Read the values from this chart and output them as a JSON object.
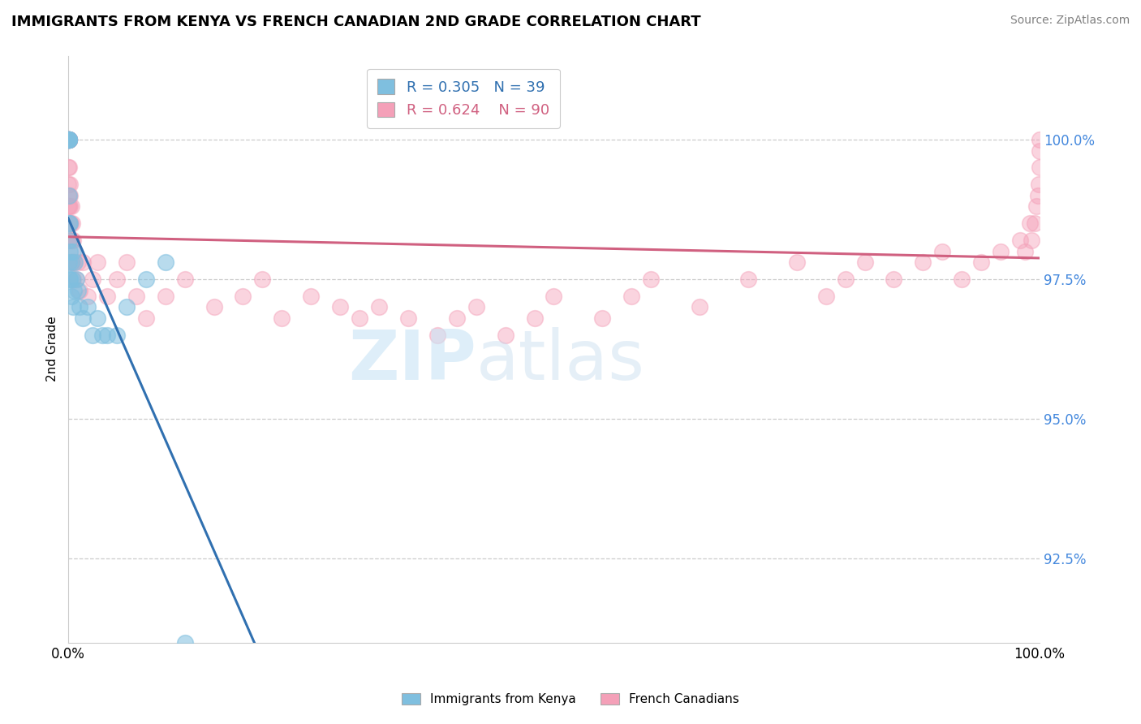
{
  "title": "IMMIGRANTS FROM KENYA VS FRENCH CANADIAN 2ND GRADE CORRELATION CHART",
  "source": "Source: ZipAtlas.com",
  "ylabel": "2nd Grade",
  "ytick_values": [
    92.5,
    95.0,
    97.5,
    100.0
  ],
  "legend_blue_r": "R = 0.305",
  "legend_blue_n": "N = 39",
  "legend_pink_r": "R = 0.624",
  "legend_pink_n": "N = 90",
  "blue_color": "#7fbfdf",
  "pink_color": "#f4a0b8",
  "blue_line_color": "#3070b0",
  "pink_line_color": "#d06080",
  "blue_scatter_x": [
    0.0,
    0.0,
    0.0,
    0.0,
    0.0,
    0.0,
    0.05,
    0.05,
    0.05,
    0.05,
    0.1,
    0.1,
    0.1,
    0.1,
    0.15,
    0.15,
    0.2,
    0.2,
    0.3,
    0.3,
    0.4,
    0.5,
    0.5,
    0.6,
    0.7,
    0.8,
    1.0,
    1.2,
    1.5,
    2.0,
    2.5,
    3.0,
    3.5,
    4.0,
    5.0,
    6.0,
    8.0,
    10.0,
    12.0
  ],
  "blue_scatter_y": [
    100.0,
    100.0,
    100.0,
    100.0,
    100.0,
    100.0,
    100.0,
    100.0,
    100.0,
    100.0,
    99.0,
    98.5,
    98.2,
    97.8,
    98.5,
    97.5,
    98.0,
    97.5,
    97.8,
    97.2,
    97.5,
    97.0,
    98.0,
    97.3,
    97.8,
    97.5,
    97.3,
    97.0,
    96.8,
    97.0,
    96.5,
    96.8,
    96.5,
    96.5,
    96.5,
    97.0,
    97.5,
    97.8,
    91.0
  ],
  "pink_scatter_x": [
    0.0,
    0.0,
    0.0,
    0.0,
    0.05,
    0.05,
    0.05,
    0.05,
    0.05,
    0.05,
    0.05,
    0.05,
    0.05,
    0.05,
    0.1,
    0.1,
    0.1,
    0.1,
    0.15,
    0.15,
    0.15,
    0.2,
    0.2,
    0.2,
    0.25,
    0.3,
    0.3,
    0.3,
    0.35,
    0.4,
    0.4,
    0.5,
    0.5,
    0.6,
    0.7,
    0.8,
    1.0,
    1.2,
    1.5,
    2.0,
    2.5,
    3.0,
    4.0,
    5.0,
    6.0,
    7.0,
    8.0,
    10.0,
    12.0,
    15.0,
    18.0,
    20.0,
    22.0,
    25.0,
    28.0,
    30.0,
    32.0,
    35.0,
    38.0,
    40.0,
    42.0,
    45.0,
    48.0,
    50.0,
    55.0,
    58.0,
    60.0,
    65.0,
    70.0,
    75.0,
    78.0,
    80.0,
    82.0,
    85.0,
    88.0,
    90.0,
    92.0,
    94.0,
    96.0,
    98.0,
    98.5,
    99.0,
    99.2,
    99.5,
    99.7,
    99.8,
    99.9,
    100.0,
    100.0,
    100.0
  ],
  "pink_scatter_y": [
    99.5,
    99.2,
    99.0,
    98.8,
    100.0,
    100.0,
    100.0,
    100.0,
    100.0,
    100.0,
    100.0,
    100.0,
    100.0,
    100.0,
    99.5,
    99.0,
    98.8,
    98.5,
    99.2,
    98.8,
    98.5,
    99.0,
    98.5,
    98.2,
    98.5,
    98.8,
    98.2,
    97.8,
    98.2,
    98.5,
    97.8,
    98.2,
    97.5,
    97.8,
    98.0,
    97.5,
    97.8,
    97.3,
    97.8,
    97.2,
    97.5,
    97.8,
    97.2,
    97.5,
    97.8,
    97.2,
    96.8,
    97.2,
    97.5,
    97.0,
    97.2,
    97.5,
    96.8,
    97.2,
    97.0,
    96.8,
    97.0,
    96.8,
    96.5,
    96.8,
    97.0,
    96.5,
    96.8,
    97.2,
    96.8,
    97.2,
    97.5,
    97.0,
    97.5,
    97.8,
    97.2,
    97.5,
    97.8,
    97.5,
    97.8,
    98.0,
    97.5,
    97.8,
    98.0,
    98.2,
    98.0,
    98.5,
    98.2,
    98.5,
    98.8,
    99.0,
    99.2,
    99.5,
    99.8,
    100.0
  ]
}
